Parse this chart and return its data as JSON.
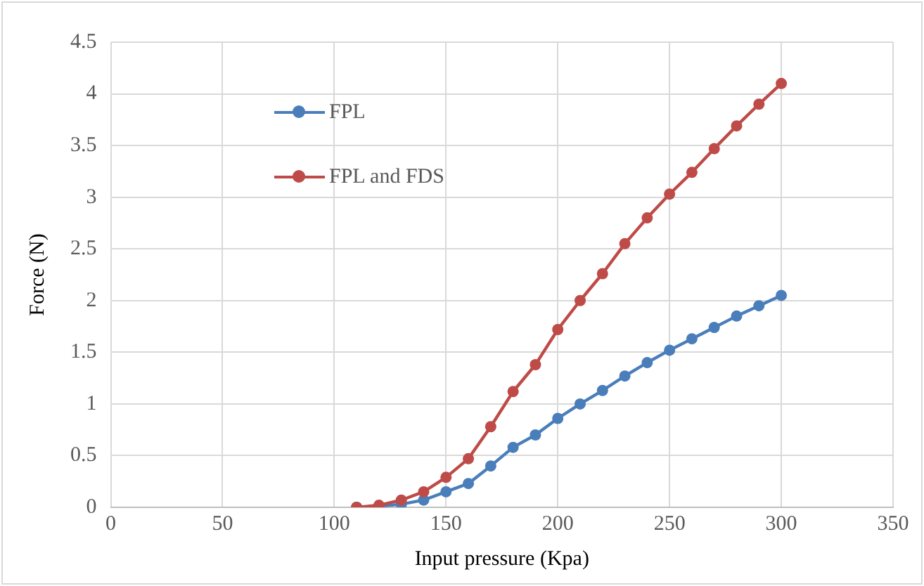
{
  "chart_data": {
    "type": "line",
    "xlabel": "Input pressure (Kpa)",
    "ylabel": "Force (N)",
    "x": [
      110,
      120,
      130,
      140,
      150,
      160,
      170,
      180,
      190,
      200,
      210,
      220,
      230,
      240,
      250,
      260,
      270,
      280,
      290,
      300
    ],
    "series": [
      {
        "name": "FPL",
        "color": "#4a7ebb",
        "values": [
          0,
          0.01,
          0.03,
          0.07,
          0.15,
          0.23,
          0.4,
          0.58,
          0.7,
          0.86,
          1.0,
          1.13,
          1.27,
          1.4,
          1.52,
          1.63,
          1.74,
          1.85,
          1.95,
          2.05
        ]
      },
      {
        "name": "FPL and FDS",
        "color": "#be4b48",
        "values": [
          0,
          0.02,
          0.07,
          0.15,
          0.29,
          0.47,
          0.78,
          1.12,
          1.38,
          1.72,
          2.0,
          2.26,
          2.55,
          2.8,
          3.03,
          3.24,
          3.47,
          3.69,
          3.9,
          4.1
        ]
      }
    ],
    "xlim": [
      0,
      350
    ],
    "xticks": [
      0,
      50,
      100,
      150,
      200,
      250,
      300,
      350
    ],
    "ylim": [
      0,
      4.5
    ],
    "yticks": [
      0,
      0.5,
      1,
      1.5,
      2,
      2.5,
      3,
      3.5,
      4,
      4.5
    ],
    "grid": true,
    "legend": "top left",
    "marker": "circle",
    "line_style": "solid"
  }
}
